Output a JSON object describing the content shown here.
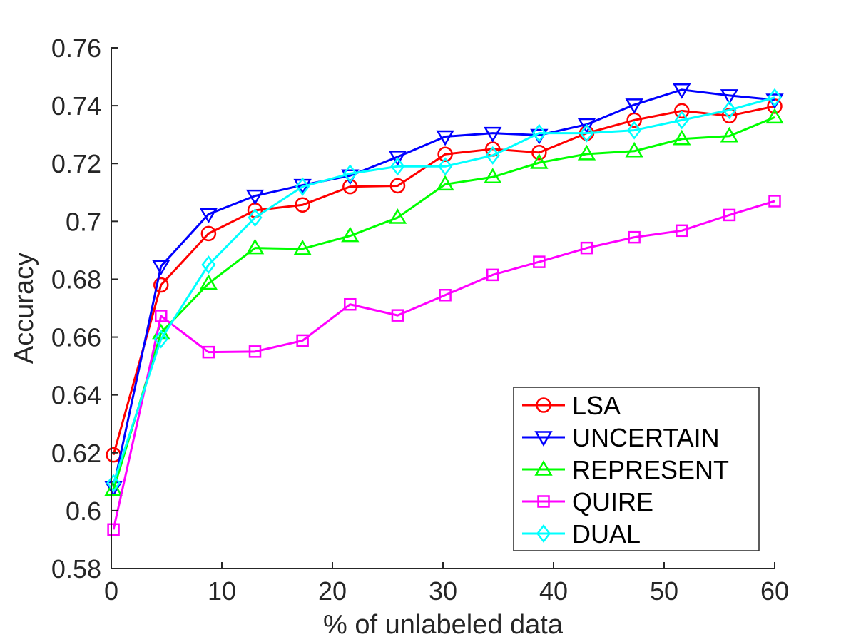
{
  "chart_data": {
    "type": "line",
    "title": "",
    "xlabel": "% of unlabeled data",
    "ylabel": "Accuracy",
    "xlim": [
      0,
      60
    ],
    "ylim": [
      0.58,
      0.76
    ],
    "xticks": [
      0,
      10,
      20,
      30,
      40,
      50,
      60
    ],
    "xtick_labels": [
      "0",
      "10",
      "20",
      "30",
      "40",
      "50",
      "60"
    ],
    "yticks": [
      0.58,
      0.6,
      0.62,
      0.64,
      0.66,
      0.68,
      0.7,
      0.72,
      0.74,
      0.76
    ],
    "ytick_labels": [
      "0.58",
      "0.6",
      "0.62",
      "0.64",
      "0.66",
      "0.68",
      "0.7",
      "0.72",
      "0.74",
      "0.76"
    ],
    "grid": false,
    "legend_position": "bottom-right",
    "x": [
      0.2,
      4.5,
      8.8,
      13.0,
      17.3,
      21.6,
      25.9,
      30.2,
      34.5,
      38.7,
      43.0,
      47.3,
      51.6,
      55.9,
      60.0
    ],
    "series": [
      {
        "name": "LSA",
        "color": "#ff0000",
        "marker": "circle",
        "values": [
          0.6193,
          0.678,
          0.6958,
          0.7038,
          0.7057,
          0.712,
          0.7123,
          0.7232,
          0.725,
          0.7238,
          0.7305,
          0.735,
          0.7382,
          0.7365,
          0.7398
        ]
      },
      {
        "name": "UNCERTAIN",
        "color": "#0000ff",
        "marker": "triangle-down",
        "values": [
          0.608,
          0.6845,
          0.7025,
          0.7088,
          0.7125,
          0.7158,
          0.7223,
          0.7293,
          0.7305,
          0.7298,
          0.7335,
          0.7403,
          0.7455,
          0.7435,
          0.742
        ]
      },
      {
        "name": "REPRESENT",
        "color": "#00ff00",
        "marker": "triangle-up",
        "values": [
          0.6073,
          0.6615,
          0.6785,
          0.6908,
          0.6905,
          0.695,
          0.7013,
          0.7128,
          0.7153,
          0.7203,
          0.7233,
          0.7243,
          0.7285,
          0.7295,
          0.736
        ]
      },
      {
        "name": "QUIRE",
        "color": "#ff00ff",
        "marker": "square",
        "values": [
          0.5935,
          0.6673,
          0.6548,
          0.655,
          0.6588,
          0.6713,
          0.6675,
          0.6745,
          0.6815,
          0.686,
          0.6908,
          0.6945,
          0.6968,
          0.7022,
          0.707
        ]
      },
      {
        "name": "DUAL",
        "color": "#00ffff",
        "marker": "diamond",
        "values": [
          0.6095,
          0.6593,
          0.685,
          0.7013,
          0.712,
          0.7165,
          0.719,
          0.719,
          0.7228,
          0.7305,
          0.7305,
          0.7315,
          0.735,
          0.7385,
          0.7428
        ]
      }
    ]
  }
}
